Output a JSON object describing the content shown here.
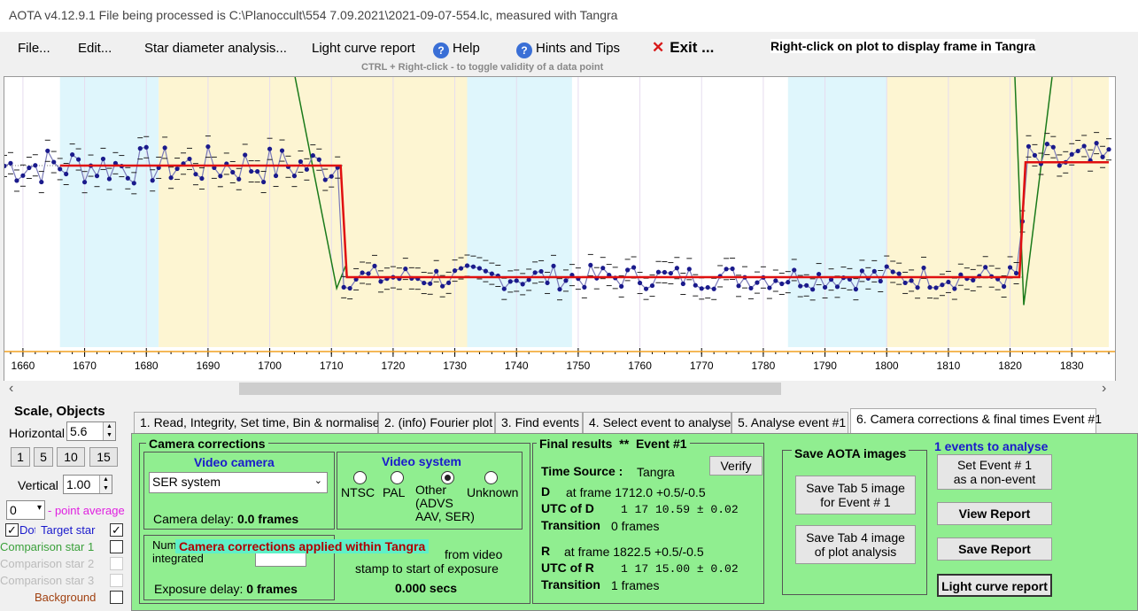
{
  "window": {
    "title": "AOTA v4.12.9.1    File being processed is C:\\Planoccult\\554 7.09.2021\\2021-09-07-554.lc, measured with Tangra"
  },
  "menu": {
    "file": "File...",
    "edit": "Edit...",
    "star_diameter": "Star diameter analysis...",
    "light_curve_report": "Light curve report",
    "help": "Help",
    "hints": "Hints and Tips",
    "exit": "Exit ...",
    "right_click_note": "Right-click on plot to display frame in Tangra",
    "ctrl_note": "CTRL + Right-click  -  to toggle validity of a data point"
  },
  "chart_data": {
    "type": "line",
    "x_ticks": [
      "1660",
      "1670",
      "1680",
      "1690",
      "1700",
      "1710",
      "1720",
      "1730",
      "1740",
      "1750",
      "1760",
      "1770",
      "1780",
      "1790",
      "1800",
      "1810",
      "1820",
      "1830"
    ],
    "xlim": [
      1657,
      1837
    ],
    "bands": [
      {
        "from": 1666,
        "to": 1682,
        "color": "#dff6fc"
      },
      {
        "from": 1682,
        "to": 1732,
        "color": "#fdf5d2"
      },
      {
        "from": 1732,
        "to": 1749,
        "color": "#dff6fc"
      },
      {
        "from": 1749,
        "to": 1784,
        "color": "#ffffff"
      },
      {
        "from": 1784,
        "to": 1800,
        "color": "#dff6fc"
      },
      {
        "from": 1800,
        "to": 1836,
        "color": "#fdf5d2"
      }
    ],
    "fit_line": {
      "levels": [
        {
          "x": [
            1666,
            1711.5
          ],
          "y": 1.0
        },
        {
          "x": [
            1712.5,
            1821.5
          ],
          "y": 0.0
        },
        {
          "x": [
            1822.5,
            1836
          ],
          "y": 1.03
        }
      ]
    },
    "level_high": 1.0,
    "level_low": 0.0,
    "d_frame": 1712.0,
    "r_frame": 1822.5
  },
  "scale": {
    "title": "Scale,  Objects",
    "horizontal_label": "Horizontal",
    "horizontal_value": "5.6",
    "presets": [
      "1",
      "5",
      "10",
      "15"
    ],
    "vertical_label": "Vertical",
    "vertical_value": "1.00",
    "avg_value": "0",
    "avg_label": "- point average",
    "dots_label": "Dots",
    "target_label": "Target star",
    "comp1": "Comparison star 1",
    "comp2": "Comparison star 2",
    "comp3": "Comparison star 3",
    "background": "Background"
  },
  "tabs": [
    "1.  Read, Integrity, Set time, Bin & normalise",
    "2. (info)  Fourier plot",
    "3. Find events",
    "4. Select event to analyse",
    "5. Analyse event #1",
    "6. Camera corrections & final times Event #1"
  ],
  "camera": {
    "group_title": "Camera corrections",
    "video_camera_title": "Video camera",
    "camera_select": "SER system",
    "camera_delay_label": "Camera delay:",
    "camera_delay_value": "0.0 frames",
    "video_system_title": "Video system",
    "ntsc": "NTSC",
    "pal": "PAL",
    "other": "Other\n(ADVS\nAAV, SER)",
    "unknown": "Unknown",
    "frames_integrated_label": "Number of frames integrated",
    "banner": "Camera corrections applied within Tangra",
    "exposure_delay_label": "Exposure delay:",
    "exposure_delay_value": "0 frames",
    "stamp_text_1": "from video",
    "stamp_text_2": "stamp to start of exposure",
    "stamp_secs": "0.000 secs"
  },
  "final": {
    "title": "Final results",
    "stars": "**",
    "event": "Event #1",
    "time_source_label": "Time Source :",
    "time_source_value": "Tangra",
    "verify": "Verify",
    "d_label": "D",
    "d_frame": "at frame 1712.0  +0.5/-0.5",
    "utc_d_label": "UTC of D",
    "utc_d_value": "1 17 10.59  ± 0.02",
    "trans_label": "Transition",
    "trans_d_value": "0 frames",
    "r_label": "R",
    "r_frame": "at frame 1822.5  +0.5/-0.5",
    "utc_r_label": "UTC of R",
    "utc_r_value": "1 17 15.00  ± 0.02",
    "trans_r_value": "1 frames"
  },
  "save_images": {
    "title": "Save AOTA images",
    "tab5": "Save Tab 5 image\nfor Event # 1",
    "tab4": "Save Tab 4 image\nof plot analysis"
  },
  "actions": {
    "events_count": "1  events to analyse",
    "set_event": "Set Event # 1\nas a non-event",
    "view_report": "View Report",
    "save_report": "Save Report",
    "light_curve_report": "Light curve report"
  },
  "colors": {
    "tab_green": "#90ee90",
    "fit_red": "#e01010",
    "data_blue": "#1a1a8c",
    "model_green": "#1a7a1a",
    "baseline_orange": "#f0a020"
  }
}
